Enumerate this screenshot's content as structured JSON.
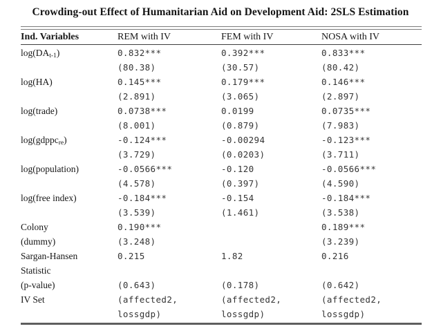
{
  "title": "Crowding-out Effect of Humanitarian Aid on Development Aid: 2SLS Estimation",
  "header": {
    "col_variables": "Ind. Variables",
    "col_rem": "REM with IV",
    "col_fem": "FEM with IV",
    "col_nosa": "NOSA with IV"
  },
  "rows": [
    {
      "label_pre": "log(DA",
      "label_sub": "t-1",
      "label_post": ")",
      "label_line2": "",
      "c1l1": "0.832***",
      "c1l2": "(80.38)",
      "c2l1": "0.392***",
      "c2l2": "(30.57)",
      "c3l1": "0.833***",
      "c3l2": "(80.42)"
    },
    {
      "label_pre": "log(HA)",
      "label_sub": "",
      "label_post": "",
      "label_line2": "",
      "c1l1": "0.145***",
      "c1l2": "(2.891)",
      "c2l1": "0.179***",
      "c2l2": "(3.065)",
      "c3l1": "0.146***",
      "c3l2": "(2.897)"
    },
    {
      "label_pre": "log(trade)",
      "label_sub": "",
      "label_post": "",
      "label_line2": "",
      "c1l1": "0.0738***",
      "c1l2": "(8.001)",
      "c2l1": "0.0199",
      "c2l2": "(0.879)",
      "c3l1": "0.0735***",
      "c3l2": "(7.983)"
    },
    {
      "label_pre": "log(gdppc",
      "label_sub": "re",
      "label_post": ")",
      "label_line2": "",
      "c1l1": "-0.124***",
      "c1l2": "(3.729)",
      "c2l1": "-0.00294",
      "c2l2": "(0.0203)",
      "c3l1": "-0.123***",
      "c3l2": "(3.711)"
    },
    {
      "label_pre": "log(population)",
      "label_sub": "",
      "label_post": "",
      "label_line2": "",
      "c1l1": "-0.0566***",
      "c1l2": "(4.578)",
      "c2l1": "-0.120",
      "c2l2": "(0.397)",
      "c3l1": "-0.0566***",
      "c3l2": "(4.590)"
    },
    {
      "label_pre": "log(free index)",
      "label_sub": "",
      "label_post": "",
      "label_line2": "",
      "c1l1": "-0.184***",
      "c1l2": "(3.539)",
      "c2l1": "-0.154",
      "c2l2": "(1.461)",
      "c3l1": "-0.184***",
      "c3l2": "(3.538)"
    },
    {
      "label_pre": "Colony",
      "label_sub": "",
      "label_post": "",
      "label_line2": "(dummy)",
      "c1l1": "0.190***",
      "c1l2": "(3.248)",
      "c2l1": "",
      "c2l2": "",
      "c3l1": "0.189***",
      "c3l2": "(3.239)"
    },
    {
      "label_pre": "Sargan-Hansen",
      "label_sub": "",
      "label_post": "",
      "label_line2": "Statistic",
      "c1l1": "0.215",
      "c1l2": "",
      "c2l1": "1.82",
      "c2l2": "",
      "c3l1": "0.216",
      "c3l2": ""
    },
    {
      "label_pre": "(p-value)",
      "label_sub": "",
      "label_post": "",
      "c1l1": "(0.643)",
      "c2l1": "(0.178)",
      "c3l1": "(0.642)"
    },
    {
      "label_pre": "IV Set",
      "label_sub": "",
      "label_post": "",
      "label_line2": "",
      "c1l1": "(affected2,",
      "c1l2": "lossgdp)",
      "c2l1": "(affected2,",
      "c2l2": "lossgdp)",
      "c3l1": "(affected2,",
      "c3l2": "lossgdp)"
    }
  ]
}
